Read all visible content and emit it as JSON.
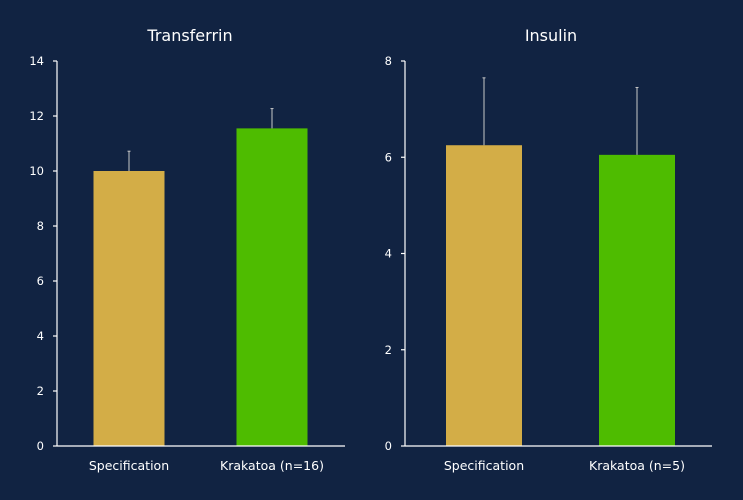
{
  "chart_data": [
    {
      "type": "bar",
      "title": "Transferrin",
      "categories": [
        "Specification",
        "Krakatoa (n=16)"
      ],
      "values": [
        10.0,
        11.55
      ],
      "error_upper": [
        0.72,
        0.72
      ],
      "ylim": [
        0,
        14
      ],
      "yticks": [
        0,
        2,
        4,
        6,
        8,
        10,
        12,
        14
      ],
      "xlabel": "",
      "ylabel": "",
      "colors": [
        "#d3ad47",
        "#4ebc00"
      ]
    },
    {
      "type": "bar",
      "title": "Insulin",
      "categories": [
        "Specification",
        "Krakatoa (n=5)"
      ],
      "values": [
        6.25,
        6.05
      ],
      "error_upper": [
        1.4,
        1.4
      ],
      "ylim": [
        0,
        8
      ],
      "yticks": [
        0,
        2,
        4,
        6,
        8
      ],
      "xlabel": "",
      "ylabel": "",
      "colors": [
        "#d3ad47",
        "#4ebc00"
      ]
    }
  ],
  "colors": {
    "background": "#112342",
    "text": "#ffffff",
    "axis": "#ffffff",
    "error": "#c8c8c8"
  }
}
